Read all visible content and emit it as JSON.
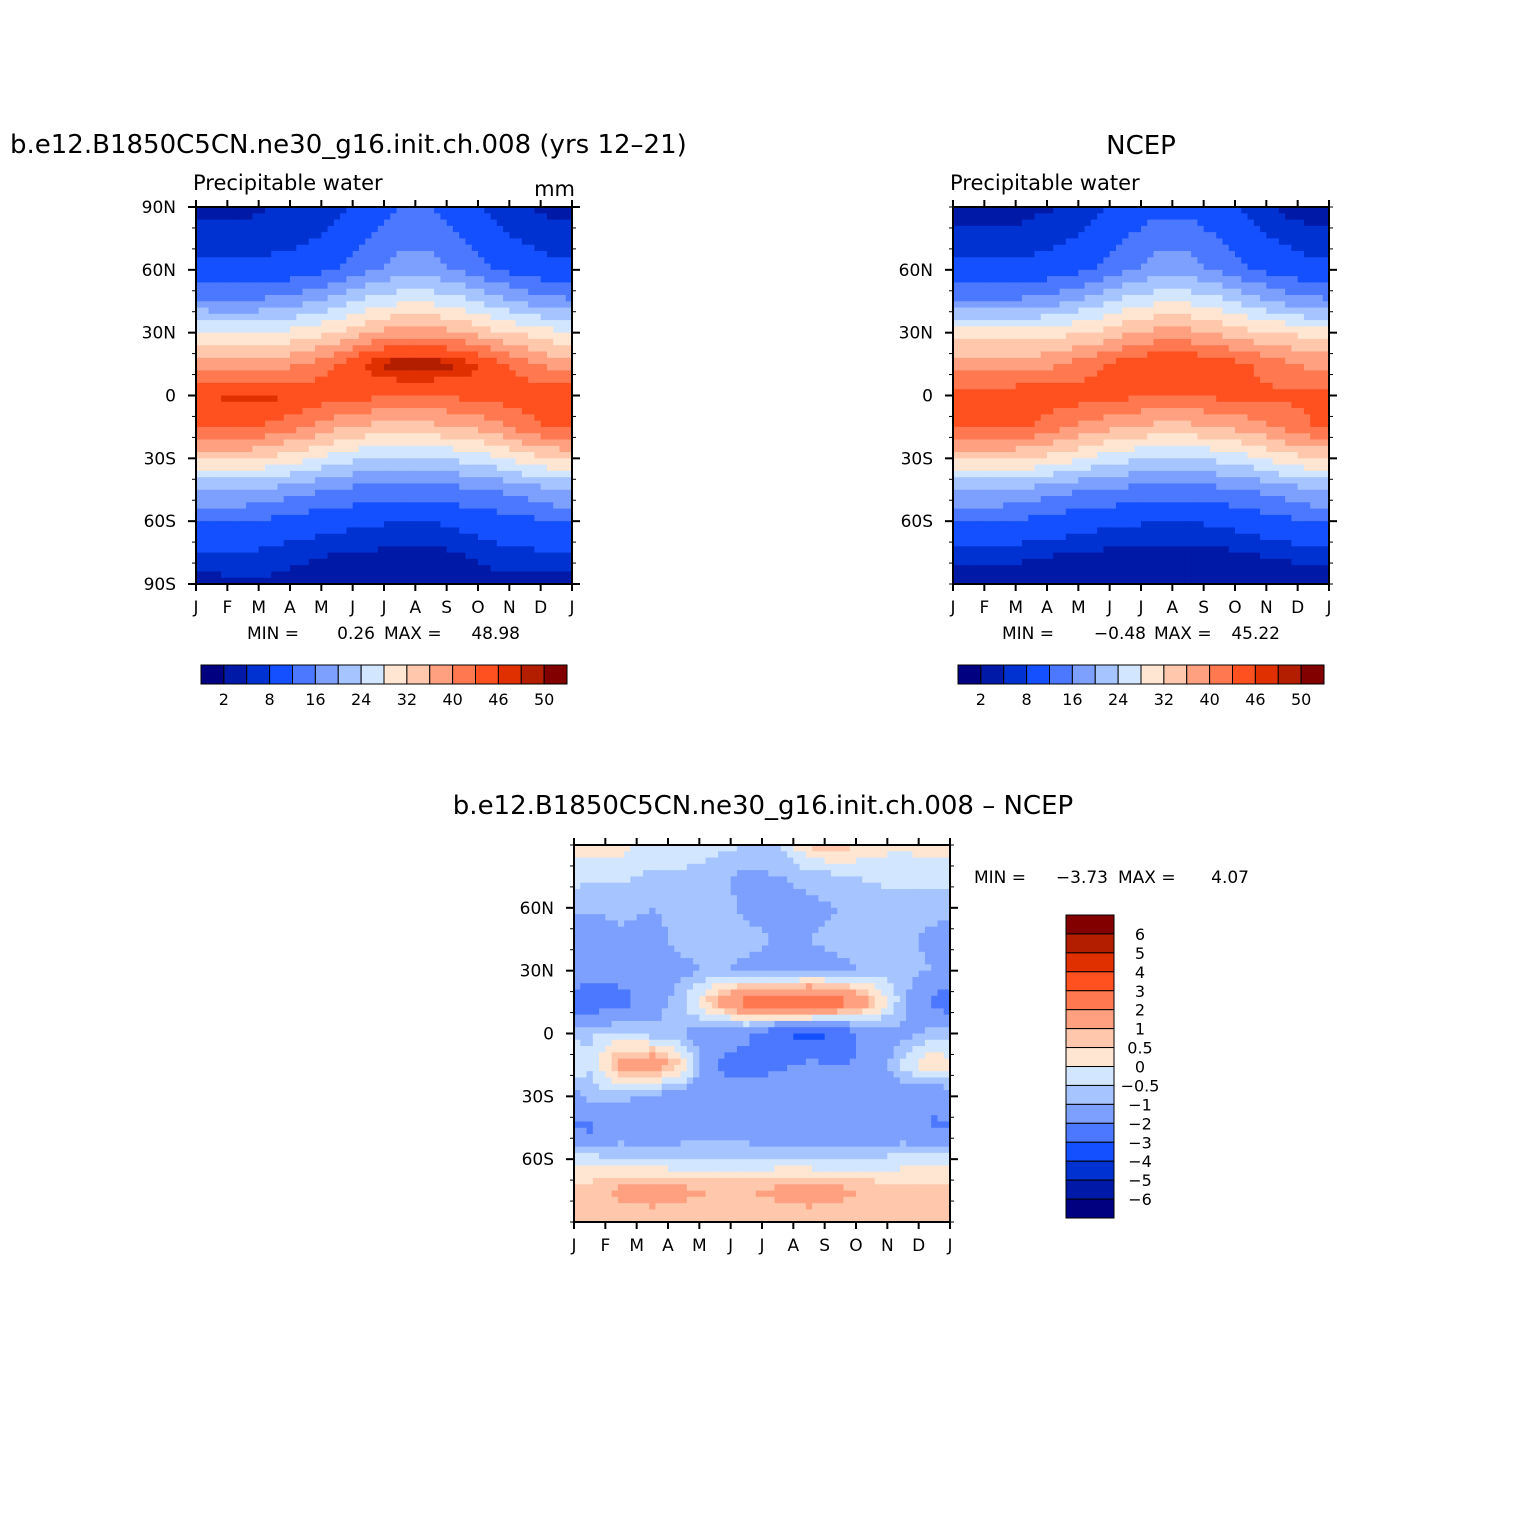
{
  "chart_data": [
    {
      "type": "heatmap",
      "title": "b.e12.B1850C5CN.ne30_g16.init.ch.008 (yrs 12–21)",
      "subtitle": "Precipitable water",
      "units": "mm",
      "x_tick_labels": [
        "J",
        "F",
        "M",
        "A",
        "M",
        "J",
        "J",
        "A",
        "S",
        "O",
        "N",
        "D",
        "J"
      ],
      "y_tick_labels": [
        "90N",
        "60N",
        "30N",
        "0",
        "30S",
        "60S",
        "90S"
      ],
      "ylim": [
        -90,
        90
      ],
      "stats": {
        "min_label": "MIN =",
        "min": "0.26",
        "max_label": "MAX =",
        "max": "48.98"
      },
      "colorbar_labels": [
        "2",
        "8",
        "16",
        "24",
        "32",
        "40",
        "46",
        "50"
      ],
      "levels": [
        0,
        2,
        4,
        8,
        12,
        16,
        20,
        24,
        28,
        32,
        36,
        40,
        44,
        46,
        48,
        50
      ],
      "field": {
        "lat": [
          -90,
          -75,
          -60,
          -45,
          -30,
          -15,
          0,
          15,
          30,
          45,
          60,
          75,
          90
        ],
        "months": [
          "Jan",
          "Feb",
          "Mar",
          "Apr",
          "May",
          "Jun",
          "Jul",
          "Aug",
          "Sep",
          "Oct",
          "Nov",
          "Dec"
        ],
        "values": [
          [
            1,
            1.5,
            1.5,
            1,
            0.5,
            0.5,
            0.3,
            0.3,
            0.5,
            1,
            1,
            1
          ],
          [
            4,
            4,
            3,
            2.5,
            2,
            1.8,
            1.5,
            1.5,
            2,
            3,
            3.5,
            4
          ],
          [
            8,
            8,
            7,
            6,
            5,
            4.5,
            4,
            4,
            5,
            6,
            7,
            8
          ],
          [
            16,
            16,
            15,
            13,
            12,
            10,
            10,
            10,
            11,
            12,
            14,
            16
          ],
          [
            29,
            29,
            27,
            25,
            22,
            20,
            19,
            20,
            21,
            23,
            26,
            28
          ],
          [
            41,
            41,
            39,
            36,
            33,
            31,
            30,
            31,
            32,
            34,
            38,
            41
          ],
          [
            44,
            45,
            45,
            43,
            42,
            41,
            40,
            40,
            41,
            42,
            43,
            44
          ],
          [
            33,
            33,
            34,
            36,
            40,
            45,
            48,
            48,
            46,
            42,
            37,
            34
          ],
          [
            25,
            24,
            24,
            26,
            28,
            32,
            34,
            34,
            32,
            29,
            27,
            25
          ],
          [
            12,
            12,
            13,
            15,
            18,
            21,
            23,
            23,
            21,
            18,
            15,
            13
          ],
          [
            5,
            5,
            5,
            6,
            8,
            11,
            14,
            14,
            11,
            8,
            6,
            5
          ],
          [
            2.5,
            2.5,
            3,
            3.5,
            5,
            8,
            10,
            10,
            8,
            5,
            3.5,
            2.5
          ],
          [
            1.5,
            1.5,
            2,
            2.5,
            3,
            6,
            8,
            8,
            6,
            3,
            2,
            1.5
          ]
        ]
      }
    },
    {
      "type": "heatmap",
      "title": "NCEP",
      "subtitle": "Precipitable water",
      "x_tick_labels": [
        "J",
        "F",
        "M",
        "A",
        "M",
        "J",
        "J",
        "A",
        "S",
        "O",
        "N",
        "D",
        "J"
      ],
      "y_tick_labels": [
        "60N",
        "30N",
        "0",
        "30S",
        "60S"
      ],
      "ylim": [
        -90,
        90
      ],
      "stats": {
        "min_label": "MIN =",
        "min": "−0.48",
        "max_label": "MAX =",
        "max": "45.22"
      },
      "colorbar_labels": [
        "2",
        "8",
        "16",
        "24",
        "32",
        "40",
        "46",
        "50"
      ],
      "levels": [
        0,
        2,
        4,
        8,
        12,
        16,
        20,
        24,
        28,
        32,
        36,
        40,
        44,
        46,
        48,
        50
      ],
      "field": {
        "lat": [
          -90,
          -75,
          -60,
          -45,
          -30,
          -15,
          0,
          15,
          30,
          45,
          60,
          75,
          90
        ],
        "months": [
          "Jan",
          "Feb",
          "Mar",
          "Apr",
          "May",
          "Jun",
          "Jul",
          "Aug",
          "Sep",
          "Oct",
          "Nov",
          "Dec"
        ],
        "values": [
          [
            0.5,
            0.5,
            0.5,
            0.3,
            0,
            0,
            0,
            0,
            0,
            0.3,
            0.5,
            0.5
          ],
          [
            3,
            3,
            2.5,
            2,
            1.8,
            1.5,
            1.3,
            1.3,
            1.5,
            2,
            2.5,
            3
          ],
          [
            8,
            8,
            7,
            6,
            5,
            4.5,
            4,
            4,
            4.5,
            5.5,
            7,
            8
          ],
          [
            16,
            16,
            15,
            13,
            12,
            11,
            10,
            10,
            11,
            12,
            14,
            16
          ],
          [
            29,
            29,
            28,
            26,
            23,
            21,
            20,
            20,
            21,
            23,
            26,
            28
          ],
          [
            40,
            40,
            40,
            37,
            34,
            32,
            31,
            31,
            32,
            34,
            37,
            40
          ],
          [
            41,
            42,
            43,
            42,
            42,
            41,
            40,
            40,
            41,
            41,
            41,
            41
          ],
          [
            34,
            34,
            34,
            36,
            39,
            42,
            44,
            44,
            42,
            40,
            37,
            35
          ],
          [
            26,
            26,
            26,
            27,
            28,
            31,
            33,
            33,
            31,
            29,
            28,
            26
          ],
          [
            12,
            12,
            13,
            15,
            18,
            21,
            23,
            23,
            21,
            18,
            15,
            13
          ],
          [
            5,
            5,
            5,
            6,
            8,
            11,
            14,
            14,
            11,
            8,
            6,
            5
          ],
          [
            2.5,
            2.5,
            2.8,
            3.5,
            5,
            8,
            10,
            10,
            8,
            5,
            3.5,
            2.5
          ],
          [
            1,
            1,
            1.5,
            2,
            3,
            5,
            7,
            7,
            5,
            3,
            1.5,
            1
          ]
        ]
      }
    },
    {
      "type": "heatmap",
      "title": "b.e12.B1850C5CN.ne30_g16.init.ch.008 – NCEP",
      "x_tick_labels": [
        "J",
        "F",
        "M",
        "A",
        "M",
        "J",
        "J",
        "A",
        "S",
        "O",
        "N",
        "D",
        "J"
      ],
      "y_tick_labels": [
        "60N",
        "30N",
        "0",
        "30S",
        "60S"
      ],
      "ylim": [
        -90,
        90
      ],
      "stats": {
        "min_label": "MIN =",
        "min": "−3.73",
        "max_label": "MAX =",
        "max": "4.07"
      },
      "colorbar_labels": [
        "6",
        "5",
        "4",
        "3",
        "2",
        "1",
        "0.5",
        "0",
        "−0.5",
        "−1",
        "−2",
        "−3",
        "−4",
        "−5",
        "−6"
      ],
      "levels": [
        -6,
        -5,
        -4,
        -3,
        -2,
        -1,
        -0.5,
        0,
        0.5,
        1,
        2,
        3,
        4,
        5,
        6
      ],
      "field": {
        "lat": [
          -90,
          -75,
          -60,
          -45,
          -30,
          -15,
          0,
          15,
          30,
          45,
          60,
          75,
          90
        ],
        "months": [
          "Jan",
          "Feb",
          "Mar",
          "Apr",
          "May",
          "Jun",
          "Jul",
          "Aug",
          "Sep",
          "Oct",
          "Nov",
          "Dec"
        ],
        "values": [
          [
            0.6,
            0.6,
            0.6,
            0.6,
            0.6,
            0.6,
            0.6,
            0.6,
            0.6,
            0.5,
            0.5,
            0.5
          ],
          [
            0.8,
            1.2,
            1.4,
            1.2,
            1,
            1,
            1.2,
            1.4,
            1.2,
            0.9,
            0.7,
            0.6
          ],
          [
            -0.3,
            -0.4,
            -0.5,
            -0.6,
            -0.5,
            -0.5,
            -0.5,
            -0.6,
            -0.6,
            -0.4,
            -0.3,
            -0.2
          ],
          [
            -2.2,
            -1.6,
            -1.6,
            -1.4,
            -1.5,
            -1.5,
            -1.6,
            -1.5,
            -1.6,
            -1.8,
            -1.7,
            -2.1
          ],
          [
            -0.8,
            -0.8,
            -1.2,
            -1.4,
            -1.8,
            -1.6,
            -1.2,
            -1,
            -1.2,
            -1.3,
            -1.5,
            -1.8
          ],
          [
            -0.4,
            1.2,
            1.8,
            0.4,
            -2,
            -2.4,
            -2.2,
            -1.8,
            -2,
            -1.8,
            -0.3,
            0.6
          ],
          [
            -0.6,
            -0.3,
            -0.8,
            -1,
            -1.6,
            -1.8,
            -2.8,
            -3.4,
            -2.8,
            -1.4,
            -1.2,
            -0.8
          ],
          [
            -2.8,
            -2.4,
            -1.4,
            -0.5,
            1,
            2.6,
            3,
            3.4,
            2.6,
            1,
            -0.8,
            -2.4
          ],
          [
            -1.4,
            -1.6,
            -1.6,
            -1.2,
            -0.8,
            -1.2,
            -1.4,
            -1.4,
            -1.2,
            -0.8,
            -0.8,
            -1
          ],
          [
            -1.8,
            -1.2,
            -1.2,
            -0.8,
            -0.6,
            -0.8,
            -1,
            -1,
            -0.8,
            -0.6,
            -0.8,
            -1.2
          ],
          [
            -0.8,
            -0.8,
            -1,
            -0.8,
            -0.6,
            -1.2,
            -1.4,
            -1.2,
            -1,
            -0.8,
            -0.8,
            -0.8
          ],
          [
            -0.4,
            -0.4,
            -0.6,
            -0.6,
            -0.8,
            -1.2,
            -1,
            -0.8,
            -0.6,
            -0.4,
            -0.3,
            -0.3
          ],
          [
            0.3,
            0.2,
            -0.2,
            -0.2,
            -0.3,
            -0.5,
            -0.6,
            0.6,
            0.8,
            0.2,
            0.1,
            0.2
          ]
        ]
      }
    }
  ],
  "colors": {
    "full_palette": [
      "#000080",
      "#0019a6",
      "#0032d2",
      "#1450ff",
      "#4b78ff",
      "#7da0ff",
      "#a6c4ff",
      "#d2e6ff",
      "#ffe6d2",
      "#ffc8ad",
      "#ffa080",
      "#ff7850",
      "#ff5020",
      "#e03000",
      "#b41e00",
      "#820000"
    ],
    "diff_palette": [
      "#000080",
      "#0019a6",
      "#0032d2",
      "#1450ff",
      "#4b78ff",
      "#7da0ff",
      "#a6c4ff",
      "#d2e6ff",
      "#ffe6d2",
      "#ffc8ad",
      "#ffa080",
      "#ff7850",
      "#ff5020",
      "#e03000",
      "#b41e00",
      "#820000"
    ]
  }
}
